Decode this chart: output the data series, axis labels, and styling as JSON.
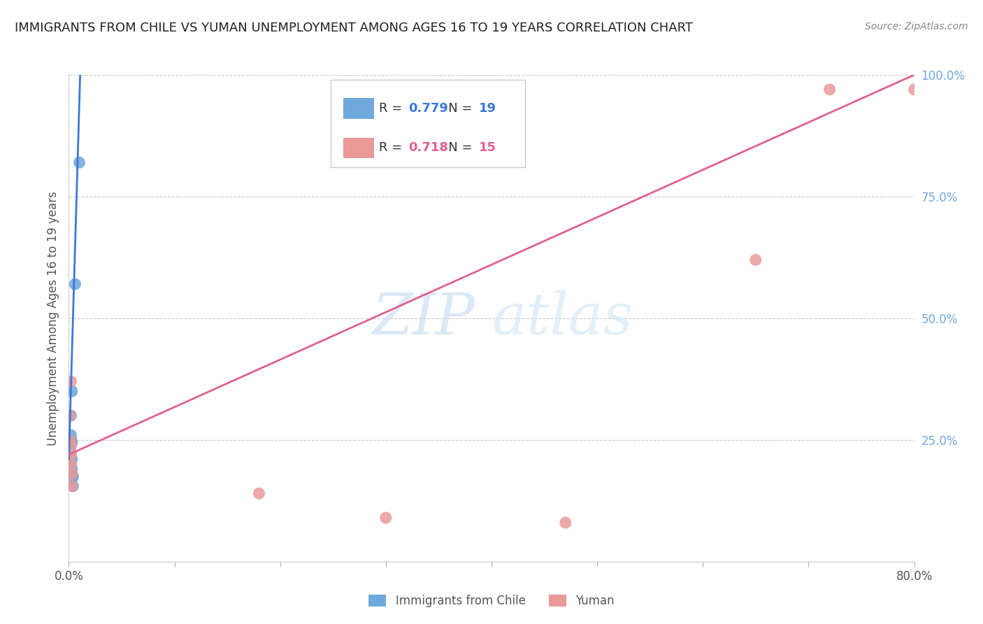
{
  "title": "IMMIGRANTS FROM CHILE VS YUMAN UNEMPLOYMENT AMONG AGES 16 TO 19 YEARS CORRELATION CHART",
  "source": "Source: ZipAtlas.com",
  "ylabel": "Unemployment Among Ages 16 to 19 years",
  "xlabel_blue": "Immigrants from Chile",
  "xlabel_pink": "Yuman",
  "xlim": [
    0.0,
    0.8
  ],
  "ylim": [
    0.0,
    1.0
  ],
  "yticks_right": [
    0.0,
    0.25,
    0.5,
    0.75,
    1.0
  ],
  "ytick_labels_right": [
    "",
    "25.0%",
    "50.0%",
    "75.0%",
    "100.0%"
  ],
  "blue_R": "0.779",
  "blue_N": "19",
  "pink_R": "0.718",
  "pink_N": "15",
  "blue_color": "#6fa8dc",
  "pink_color": "#ea9999",
  "blue_line_color": "#3c78d8",
  "pink_line_color": "#e06090",
  "blue_scatter_x": [
    0.001,
    0.001,
    0.001,
    0.001,
    0.002,
    0.002,
    0.002,
    0.002,
    0.002,
    0.002,
    0.003,
    0.003,
    0.003,
    0.003,
    0.003,
    0.004,
    0.004,
    0.006,
    0.01
  ],
  "blue_scatter_y": [
    0.21,
    0.22,
    0.23,
    0.235,
    0.2,
    0.22,
    0.24,
    0.25,
    0.26,
    0.3,
    0.17,
    0.19,
    0.21,
    0.245,
    0.35,
    0.155,
    0.175,
    0.57,
    0.82
  ],
  "pink_scatter_x": [
    0.001,
    0.001,
    0.001,
    0.002,
    0.002,
    0.002,
    0.002,
    0.003,
    0.003,
    0.18,
    0.3,
    0.47,
    0.65,
    0.72,
    0.8
  ],
  "pink_scatter_y": [
    0.22,
    0.25,
    0.3,
    0.2,
    0.22,
    0.24,
    0.37,
    0.155,
    0.18,
    0.14,
    0.09,
    0.08,
    0.62,
    0.97,
    0.97
  ],
  "blue_line_x": [
    0.0,
    0.011
  ],
  "blue_line_y": [
    0.21,
    1.02
  ],
  "pink_line_x": [
    0.0,
    0.8
  ],
  "pink_line_y": [
    0.22,
    1.0
  ],
  "watermark_zip": "ZIP",
  "watermark_atlas": "atlas",
  "background_color": "#ffffff",
  "grid_color": "#cccccc",
  "right_axis_color": "#6fa8dc"
}
